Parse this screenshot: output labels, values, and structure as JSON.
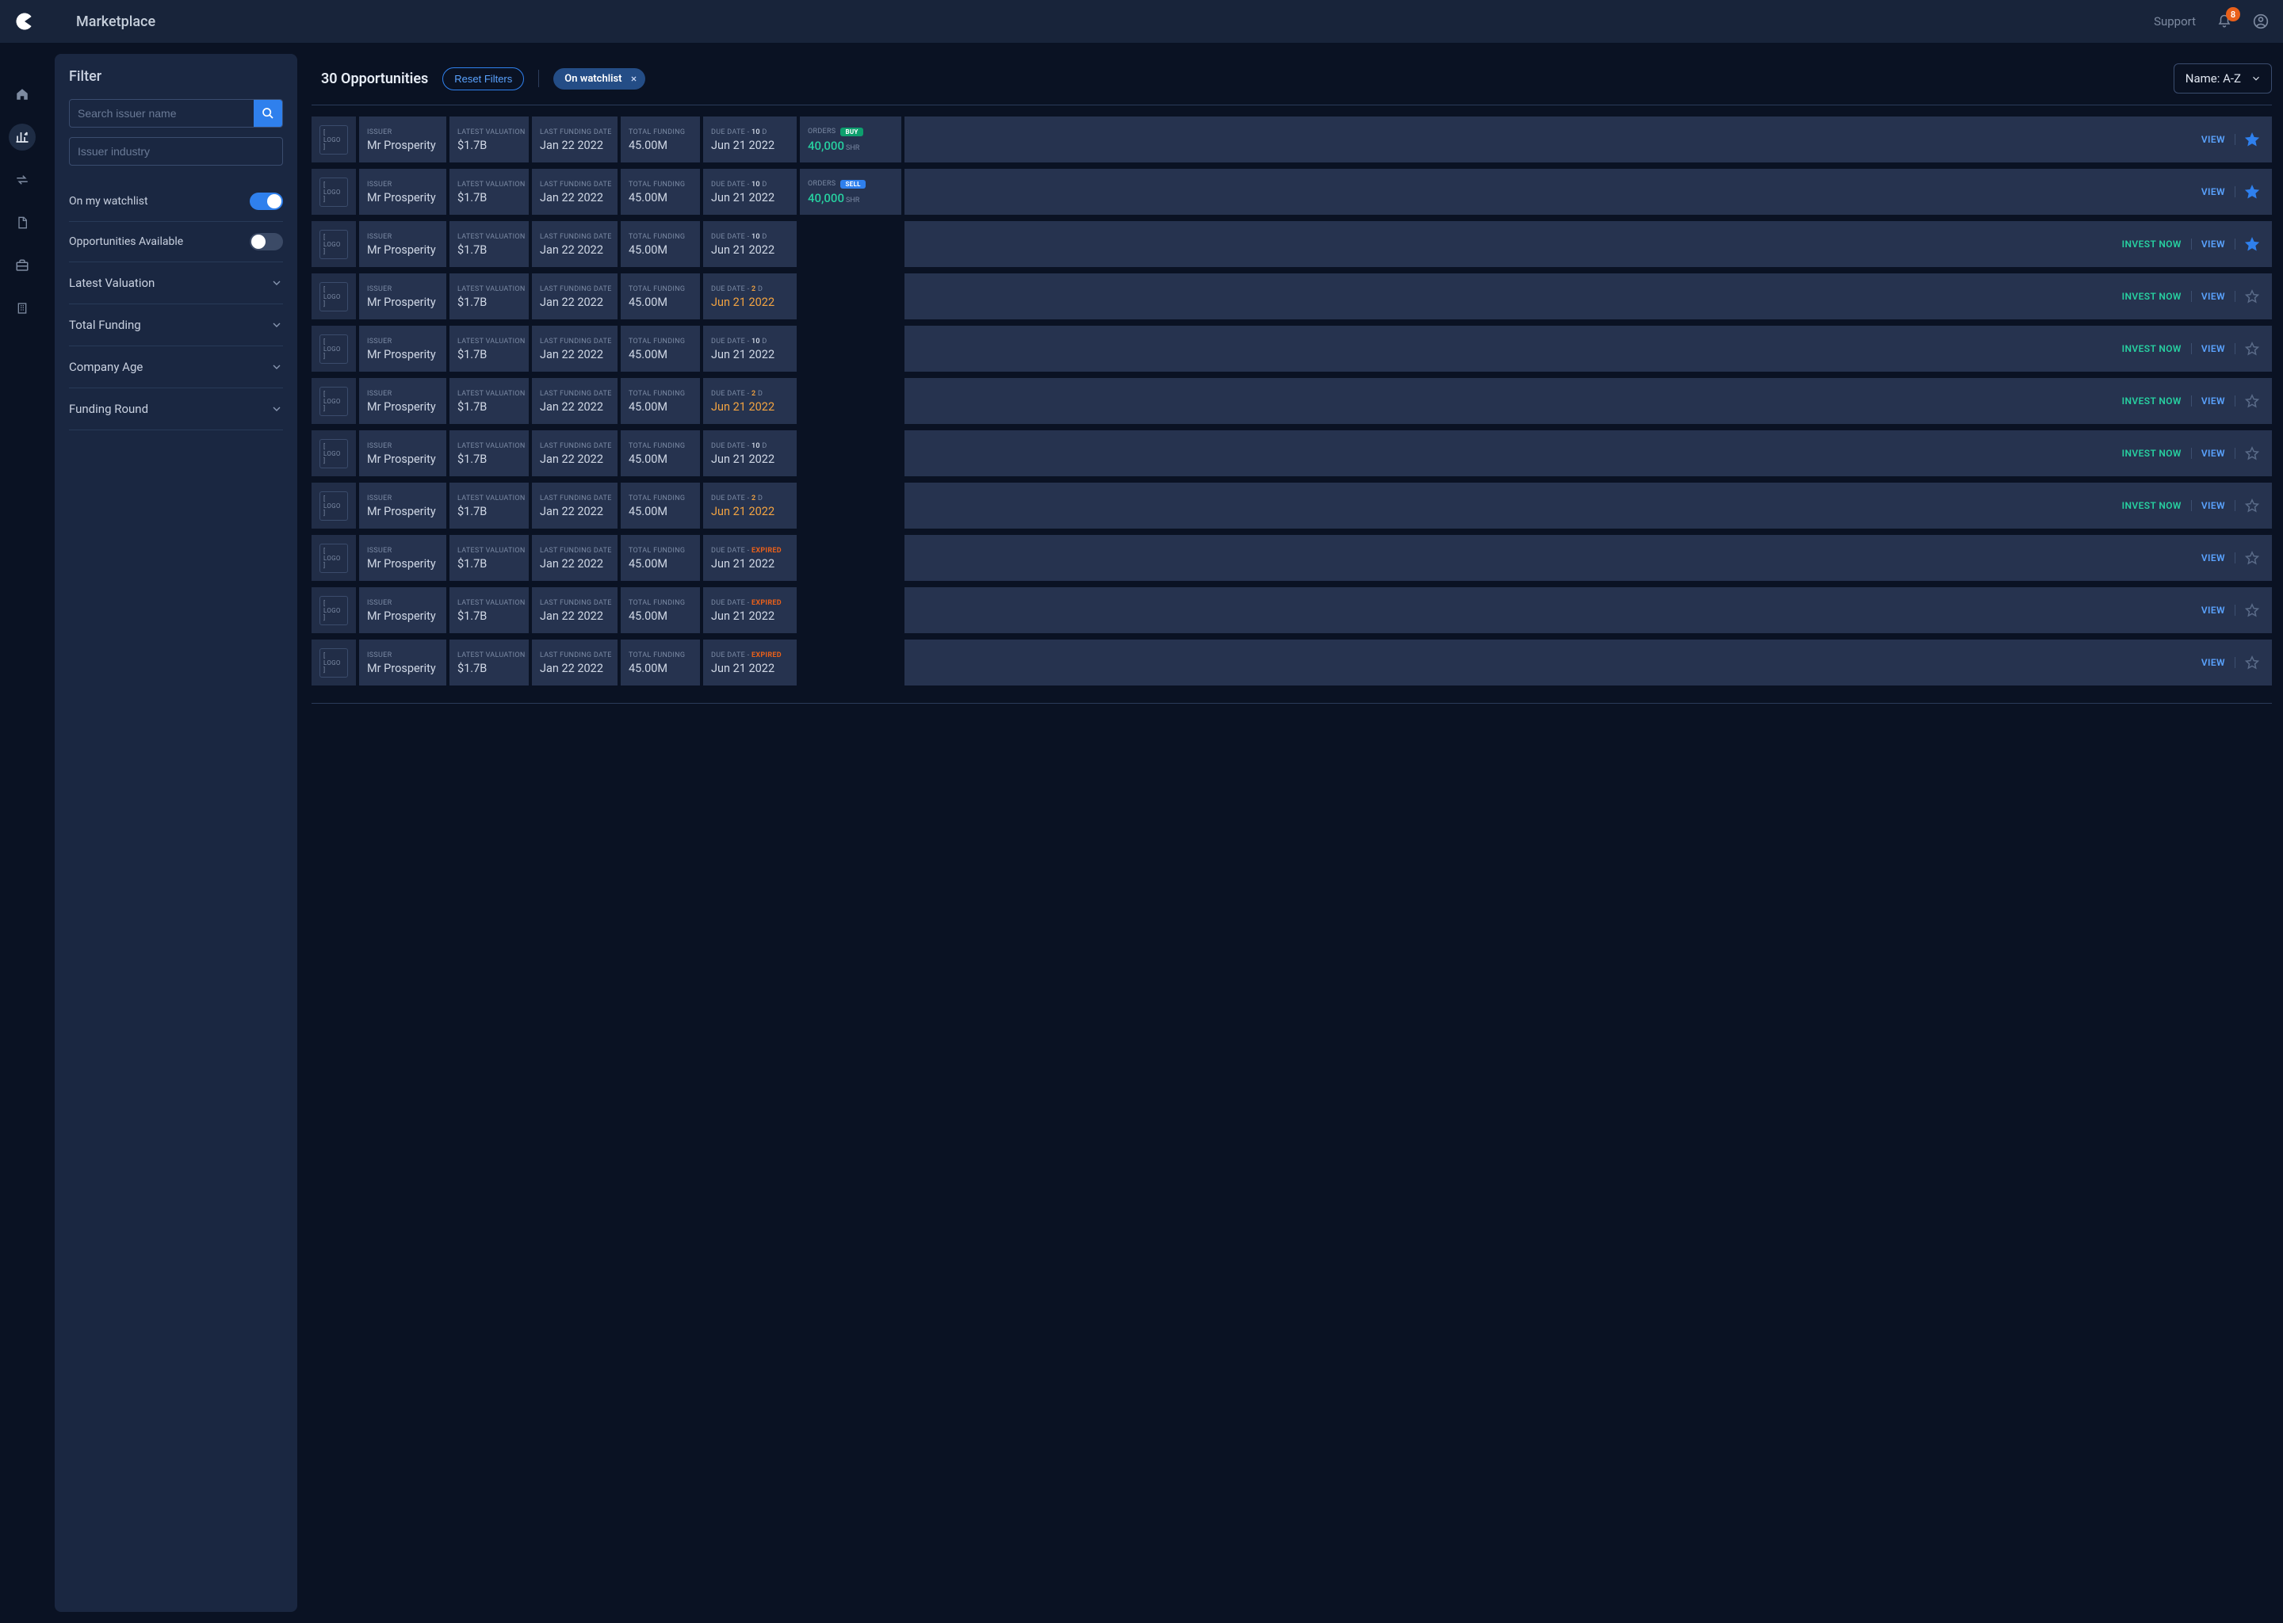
{
  "topbar": {
    "title": "Marketplace",
    "support_label": "Support",
    "notification_count": "8"
  },
  "rail": {
    "items": [
      "home",
      "marketplace",
      "transfers",
      "documents",
      "portfolio",
      "company"
    ]
  },
  "filter": {
    "heading": "Filter",
    "search_placeholder": "Search issuer name",
    "industry_placeholder": "Issuer industry",
    "watchlist_label": "On my watchlist",
    "watchlist_on": true,
    "available_label": "Opportunities Available",
    "available_on": false,
    "accordions": [
      {
        "label": "Latest Valuation"
      },
      {
        "label": "Total Funding"
      },
      {
        "label": "Company Age"
      },
      {
        "label": "Funding Round"
      }
    ]
  },
  "content": {
    "title": "30 Opportunities",
    "reset_label": "Reset Filters",
    "chip_label": "On watchlist",
    "sort_label": "Name: A-Z",
    "col_labels": {
      "issuer": "ISSUER",
      "latest_valuation": "LATEST VALUATION",
      "last_funding_date": "LAST FUNDING DATE",
      "total_funding": "TOTAL FUNDING",
      "due_date": "DUE DATE",
      "orders": "ORDERS",
      "logo": "[ LOGO ]"
    },
    "action_labels": {
      "invest": "INVEST NOW",
      "view": "VIEW"
    },
    "order_types": {
      "buy": "BUY",
      "sell": "SELL",
      "unit": "SHR"
    },
    "due_expired": "EXPIRED",
    "due_unit": "D",
    "rows": [
      {
        "issuer": "Mr Prosperity",
        "valuation": "$1.7B",
        "last_funding": "Jan 22 2022",
        "total_funding": "45.00M",
        "due_days": "10",
        "due_warn": false,
        "due_date": "Jun 21 2022",
        "orders": {
          "value": "40,000",
          "type": "buy"
        },
        "invest": false,
        "star_filled": true
      },
      {
        "issuer": "Mr Prosperity",
        "valuation": "$1.7B",
        "last_funding": "Jan 22 2022",
        "total_funding": "45.00M",
        "due_days": "10",
        "due_warn": false,
        "due_date": "Jun 21 2022",
        "orders": {
          "value": "40,000",
          "type": "sell"
        },
        "invest": false,
        "star_filled": true
      },
      {
        "issuer": "Mr Prosperity",
        "valuation": "$1.7B",
        "last_funding": "Jan 22 2022",
        "total_funding": "45.00M",
        "due_days": "10",
        "due_warn": false,
        "due_date": "Jun 21 2022",
        "orders": null,
        "invest": true,
        "star_filled": true
      },
      {
        "issuer": "Mr Prosperity",
        "valuation": "$1.7B",
        "last_funding": "Jan 22 2022",
        "total_funding": "45.00M",
        "due_days": "2",
        "due_warn": true,
        "due_date": "Jun 21 2022",
        "orders": null,
        "invest": true,
        "star_filled": false
      },
      {
        "issuer": "Mr Prosperity",
        "valuation": "$1.7B",
        "last_funding": "Jan 22 2022",
        "total_funding": "45.00M",
        "due_days": "10",
        "due_warn": false,
        "due_date": "Jun 21 2022",
        "orders": null,
        "invest": true,
        "star_filled": false
      },
      {
        "issuer": "Mr Prosperity",
        "valuation": "$1.7B",
        "last_funding": "Jan 22 2022",
        "total_funding": "45.00M",
        "due_days": "2",
        "due_warn": true,
        "due_date": "Jun 21 2022",
        "orders": null,
        "invest": true,
        "star_filled": false
      },
      {
        "issuer": "Mr Prosperity",
        "valuation": "$1.7B",
        "last_funding": "Jan 22 2022",
        "total_funding": "45.00M",
        "due_days": "10",
        "due_warn": false,
        "due_date": "Jun 21 2022",
        "orders": null,
        "invest": true,
        "star_filled": false
      },
      {
        "issuer": "Mr Prosperity",
        "valuation": "$1.7B",
        "last_funding": "Jan 22 2022",
        "total_funding": "45.00M",
        "due_days": "2",
        "due_warn": true,
        "due_date": "Jun 21 2022",
        "orders": null,
        "invest": true,
        "star_filled": false
      },
      {
        "issuer": "Mr Prosperity",
        "valuation": "$1.7B",
        "last_funding": "Jan 22 2022",
        "total_funding": "45.00M",
        "due_expired": true,
        "due_date": "Jun 21 2022",
        "orders": null,
        "invest": false,
        "star_filled": false
      },
      {
        "issuer": "Mr Prosperity",
        "valuation": "$1.7B",
        "last_funding": "Jan 22 2022",
        "total_funding": "45.00M",
        "due_expired": true,
        "due_date": "Jun 21 2022",
        "orders": null,
        "invest": false,
        "star_filled": false
      },
      {
        "issuer": "Mr Prosperity",
        "valuation": "$1.7B",
        "last_funding": "Jan 22 2022",
        "total_funding": "45.00M",
        "due_expired": true,
        "due_date": "Jun 21 2022",
        "orders": null,
        "invest": false,
        "star_filled": false
      }
    ]
  },
  "colors": {
    "bg": "#0a1223",
    "panel": "#1a2741",
    "cell": "#26334f",
    "accent_blue": "#2f80ed",
    "accent_green": "#27d0a0",
    "warn_orange": "#f2a341",
    "expired_orange": "#e9601a"
  }
}
